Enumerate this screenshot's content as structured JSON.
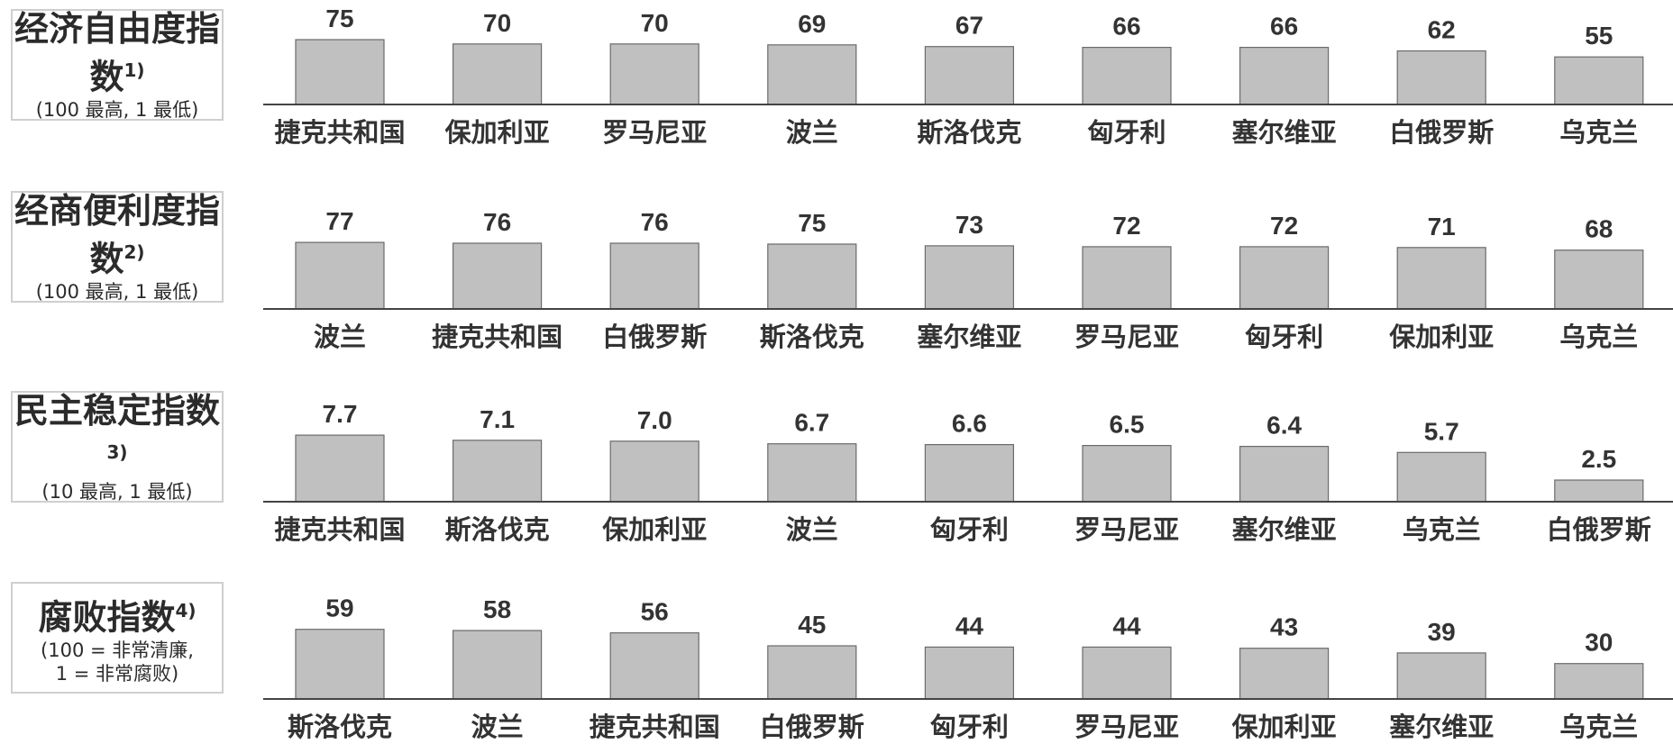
{
  "panels": [
    {
      "title": "经济自由度指数",
      "footnote": "1)",
      "scale": "(100 最高, 1 最低)"
    },
    {
      "title": "经商便利度指数",
      "footnote": "2)",
      "scale": "(100 最高, 1 最低)"
    },
    {
      "title": "民主稳定指数",
      "footnote": "3)",
      "scale": "(10 最高, 1 最低)"
    },
    {
      "title": "腐败指数",
      "footnote": "4)",
      "scale": "(100 = 非常清廉,\n 1 = 非常腐败)"
    }
  ],
  "colors": {
    "bar_fill": "#c0c0c0",
    "bar_stroke": "#6b6b6b",
    "axis": "#444444",
    "box_border": "#cfcfcf"
  },
  "chart_data": [
    {
      "type": "bar",
      "title": "经济自由度指数",
      "categories": [
        "捷克共和国",
        "保加利亚",
        "罗马尼亚",
        "波兰",
        "斯洛伐克",
        "匈牙利",
        "塞尔维亚",
        "白俄罗斯",
        "乌克兰"
      ],
      "values": [
        75,
        70,
        70,
        69,
        67,
        66,
        66,
        62,
        55
      ],
      "value_labels": [
        "75",
        "70",
        "70",
        "69",
        "67",
        "66",
        "66",
        "62",
        "55"
      ],
      "ylim": [
        0,
        100
      ],
      "grid": false
    },
    {
      "type": "bar",
      "title": "经商便利度指数",
      "categories": [
        "波兰",
        "捷克共和国",
        "白俄罗斯",
        "斯洛伐克",
        "塞尔维亚",
        "罗马尼亚",
        "匈牙利",
        "保加利亚",
        "乌克兰"
      ],
      "values": [
        77,
        76,
        76,
        75,
        73,
        72,
        72,
        71,
        68
      ],
      "value_labels": [
        "77",
        "76",
        "76",
        "75",
        "73",
        "72",
        "72",
        "71",
        "68"
      ],
      "ylim": [
        0,
        100
      ],
      "grid": false
    },
    {
      "type": "bar",
      "title": "民主稳定指数",
      "categories": [
        "捷克共和国",
        "斯洛伐克",
        "保加利亚",
        "波兰",
        "匈牙利",
        "罗马尼亚",
        "塞尔维亚",
        "乌克兰",
        "白俄罗斯"
      ],
      "values": [
        7.7,
        7.1,
        7.0,
        6.7,
        6.6,
        6.5,
        6.4,
        5.7,
        2.5
      ],
      "value_labels": [
        "7.7",
        "7.1",
        "7.0",
        "6.7",
        "6.6",
        "6.5",
        "6.4",
        "5.7",
        "2.5"
      ],
      "ylim": [
        0,
        10
      ],
      "grid": false
    },
    {
      "type": "bar",
      "title": "腐败指数",
      "categories": [
        "斯洛伐克",
        "波兰",
        "捷克共和国",
        "白俄罗斯",
        "匈牙利",
        "罗马尼亚",
        "保加利亚",
        "塞尔维亚",
        "乌克兰"
      ],
      "values": [
        59,
        58,
        56,
        45,
        44,
        44,
        43,
        39,
        30
      ],
      "value_labels": [
        "59",
        "58",
        "56",
        "45",
        "44",
        "44",
        "43",
        "39",
        "30"
      ],
      "ylim": [
        0,
        100
      ],
      "grid": false
    }
  ]
}
